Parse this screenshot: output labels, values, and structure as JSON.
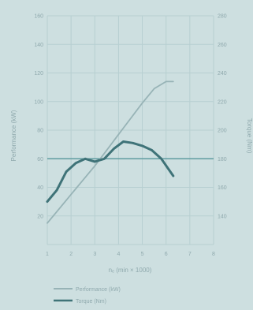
{
  "colors": {
    "background": "#cddfe0",
    "grid": "#b7cfd1",
    "highlight_line": "#5f9ca1",
    "power": "#97b3b6",
    "torque": "#3f7378",
    "text": "#8fa9ad"
  },
  "chart_data": {
    "type": "line",
    "xlabel": "nₑ (min × 1000)",
    "ylabel_left": "Performance (kW)",
    "ylabel_right": "Torque (Nm)",
    "x_ticks": [
      "1",
      "2",
      "3",
      "4",
      "5",
      "6",
      "7",
      "8"
    ],
    "y_left_ticks": [
      "20",
      "40",
      "60",
      "80",
      "100",
      "120",
      "140",
      "160"
    ],
    "y_right_ticks": [
      "140",
      "160",
      "180",
      "200",
      "220",
      "240",
      "260",
      "280"
    ],
    "xlim": [
      1,
      8
    ],
    "ylim_left": [
      0,
      160
    ],
    "ylim_right": [
      120,
      280
    ],
    "grid": true,
    "highlight_y_left": 60,
    "legend_position": "bottom",
    "series": [
      {
        "name": "Performance (kW)",
        "axis": "left",
        "x": [
          1.0,
          1.5,
          2.0,
          2.5,
          3.0,
          3.5,
          4.0,
          4.5,
          5.0,
          5.5,
          6.0,
          6.3
        ],
        "values": [
          15,
          25,
          35,
          45,
          55,
          66,
          77,
          88,
          99,
          109,
          114,
          114
        ]
      },
      {
        "name": "Torque (Nm)",
        "axis": "right",
        "x": [
          1.0,
          1.4,
          1.8,
          2.2,
          2.6,
          3.0,
          3.4,
          3.8,
          4.2,
          4.6,
          5.0,
          5.4,
          5.8,
          6.3
        ],
        "values": [
          150,
          158,
          171,
          177,
          180,
          178,
          180,
          187,
          192,
          191,
          189,
          186,
          180,
          168
        ]
      }
    ]
  }
}
